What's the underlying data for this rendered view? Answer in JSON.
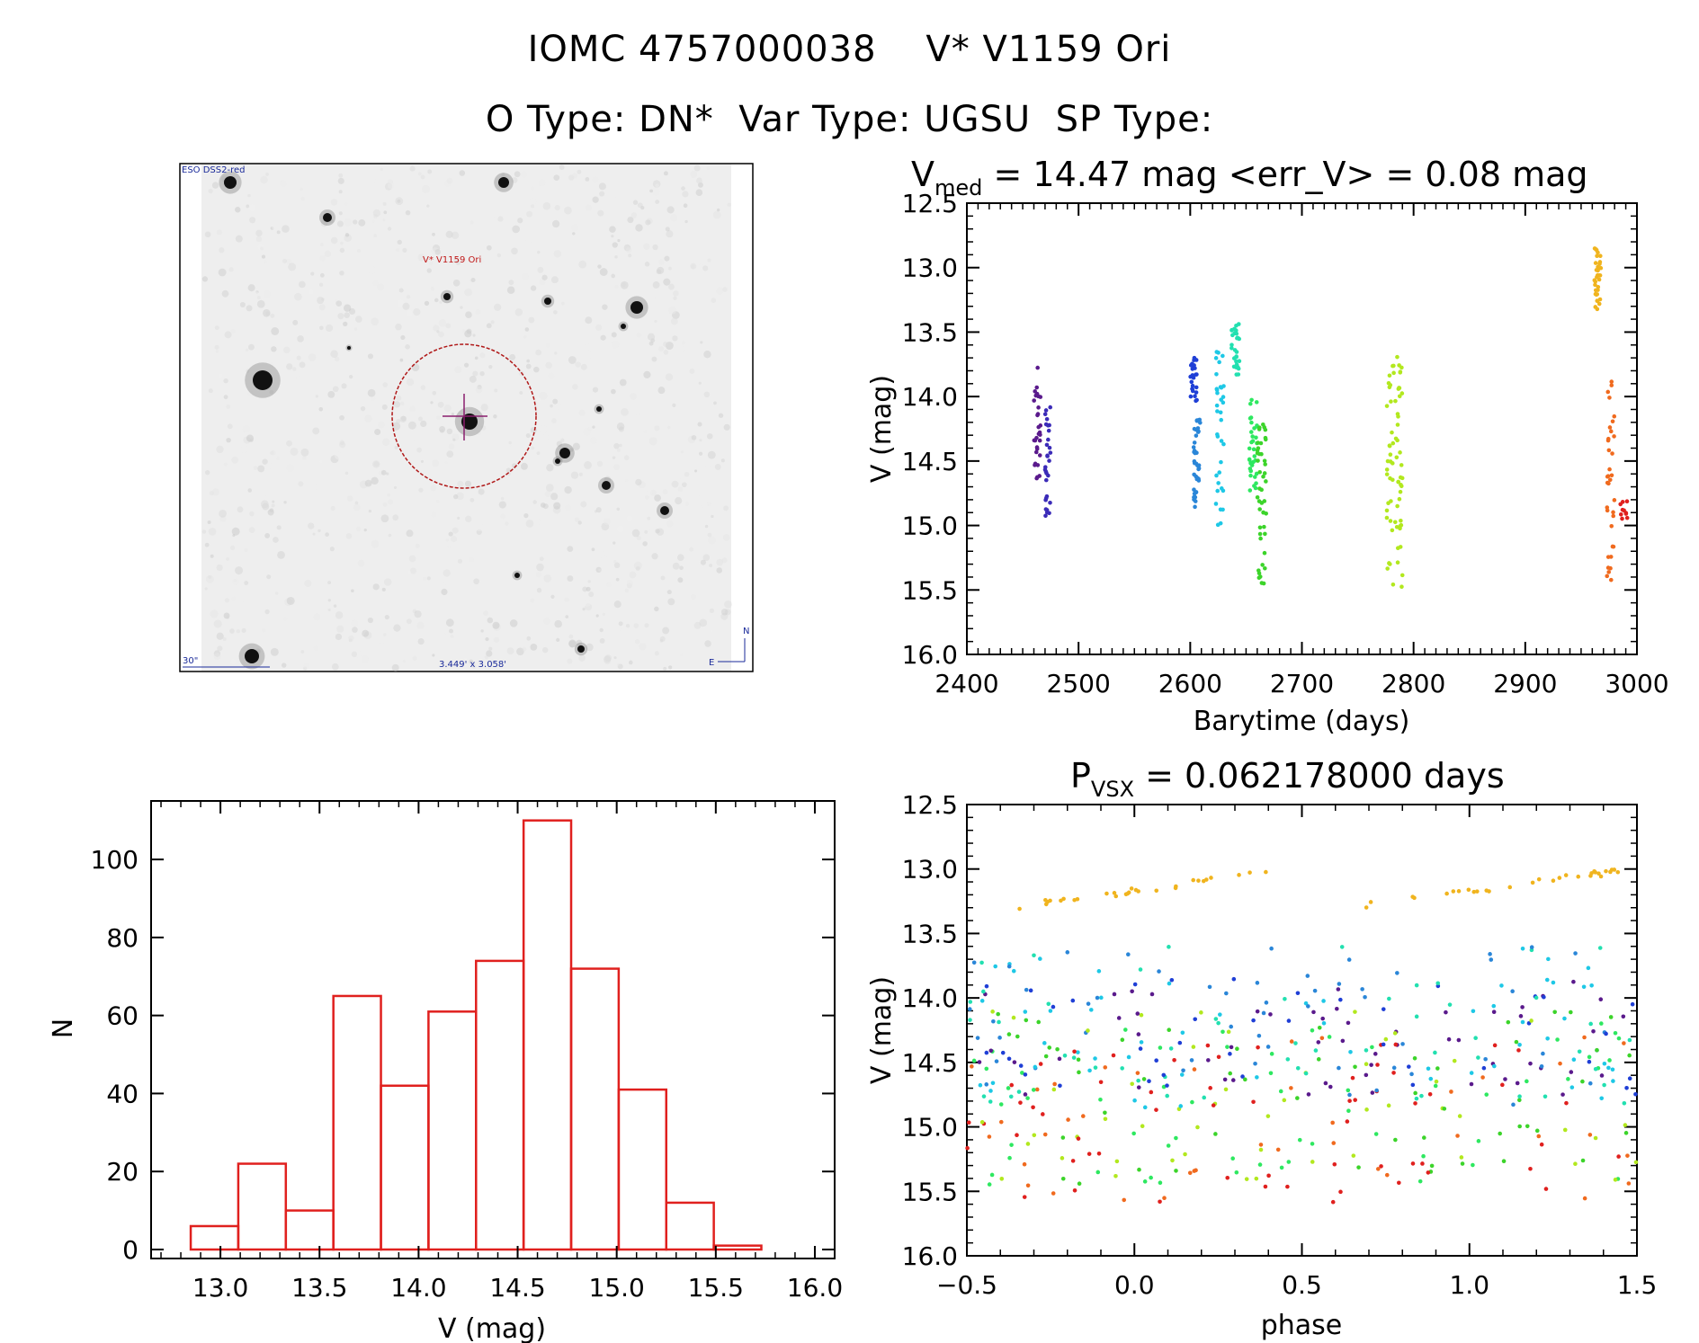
{
  "header": {
    "title_line1": "IOMC 4757000038    V* V1159 Ori",
    "title_line2": "O Type: DN*  Var Type: UGSU  SP Type:"
  },
  "image_panel": {
    "survey_label": "ESO DSS2-red",
    "target_label": "V* V1159 Ori",
    "scale_label": "30\"",
    "fov_label": "3.449' x 3.058'",
    "compass_n": "N",
    "compass_e": "E"
  },
  "chart_data": [
    {
      "id": "light-curve",
      "type": "scatter",
      "title_main": "V",
      "title_sub": "med",
      "title_rest": " = 14.47 mag <err_V> = 0.08 mag",
      "xlabel": "Barytime (days)",
      "ylabel": "V (mag)",
      "xlim": [
        2400,
        3000
      ],
      "ylim": [
        16.0,
        12.5
      ],
      "xticks": [
        2400,
        2500,
        2600,
        2700,
        2800,
        2900,
        3000
      ],
      "yticks": [
        12.5,
        13.0,
        13.5,
        14.0,
        14.5,
        15.0,
        15.5,
        16.0
      ],
      "clusters": [
        {
          "color": "#5a1a8c",
          "x": [
            2460,
            2466
          ],
          "y": [
            13.75,
            14.65
          ],
          "n": 30
        },
        {
          "color": "#3b2bb8",
          "x": [
            2470,
            2475
          ],
          "y": [
            14.05,
            14.95
          ],
          "n": 30
        },
        {
          "color": "#1f3fd6",
          "x": [
            2600,
            2606
          ],
          "y": [
            13.7,
            14.05
          ],
          "n": 25
        },
        {
          "color": "#2a86d8",
          "x": [
            2603,
            2609
          ],
          "y": [
            14.1,
            14.9
          ],
          "n": 40
        },
        {
          "color": "#1ec8e6",
          "x": [
            2623,
            2630
          ],
          "y": [
            13.65,
            15.0
          ],
          "n": 35
        },
        {
          "color": "#22e0b0",
          "x": [
            2637,
            2644
          ],
          "y": [
            13.42,
            13.85
          ],
          "n": 30
        },
        {
          "color": "#2ee860",
          "x": [
            2653,
            2660
          ],
          "y": [
            14.0,
            14.75
          ],
          "n": 35
        },
        {
          "color": "#3cd42a",
          "x": [
            2660,
            2668
          ],
          "y": [
            14.2,
            15.45
          ],
          "n": 45
        },
        {
          "color": "#b2e81e",
          "x": [
            2776,
            2790
          ],
          "y": [
            13.68,
            15.5
          ],
          "n": 70
        },
        {
          "color": "#f0b41e",
          "x": [
            2962,
            2968
          ],
          "y": [
            12.85,
            13.35
          ],
          "n": 35
        },
        {
          "color": "#f06a1e",
          "x": [
            2973,
            2980
          ],
          "y": [
            13.85,
            15.55
          ],
          "n": 35
        },
        {
          "color": "#e0201e",
          "x": [
            2985,
            2992
          ],
          "y": [
            14.8,
            14.95
          ],
          "n": 10
        }
      ]
    },
    {
      "id": "histogram",
      "type": "bar",
      "xlabel": "V (mag)",
      "ylabel": "N",
      "xlim": [
        12.65,
        16.1
      ],
      "ylim": [
        0,
        115
      ],
      "xticks": [
        13.0,
        13.5,
        14.0,
        14.5,
        15.0,
        15.5,
        16.0
      ],
      "yticks": [
        0,
        20,
        40,
        60,
        80,
        100
      ],
      "bin_edges": [
        12.85,
        13.09,
        13.33,
        13.57,
        13.81,
        14.05,
        14.29,
        14.53,
        14.77,
        15.01,
        15.25,
        15.49,
        15.73
      ],
      "counts": [
        6,
        22,
        10,
        65,
        42,
        61,
        74,
        110,
        72,
        41,
        12,
        1
      ],
      "color": "#e0201e"
    },
    {
      "id": "phase-curve",
      "type": "scatter",
      "title_main": "P",
      "title_sub": "VSX",
      "title_rest": " = 0.062178000 days",
      "xlabel": "phase",
      "ylabel": "V (mag)",
      "xlim": [
        -0.5,
        1.5
      ],
      "ylim": [
        16.0,
        12.5
      ],
      "xticks": [
        -0.5,
        0.0,
        0.5,
        1.0,
        1.5
      ],
      "yticks": [
        12.5,
        13.0,
        13.5,
        14.0,
        14.5,
        15.0,
        15.5,
        16.0
      ],
      "colors": [
        "#5a1a8c",
        "#1f3fd6",
        "#2a86d8",
        "#1ec8e6",
        "#22e0b0",
        "#2ee860",
        "#3cd42a",
        "#b2e81e",
        "#f06a1e",
        "#e0201e"
      ],
      "orange_color": "#f0b41e"
    }
  ]
}
